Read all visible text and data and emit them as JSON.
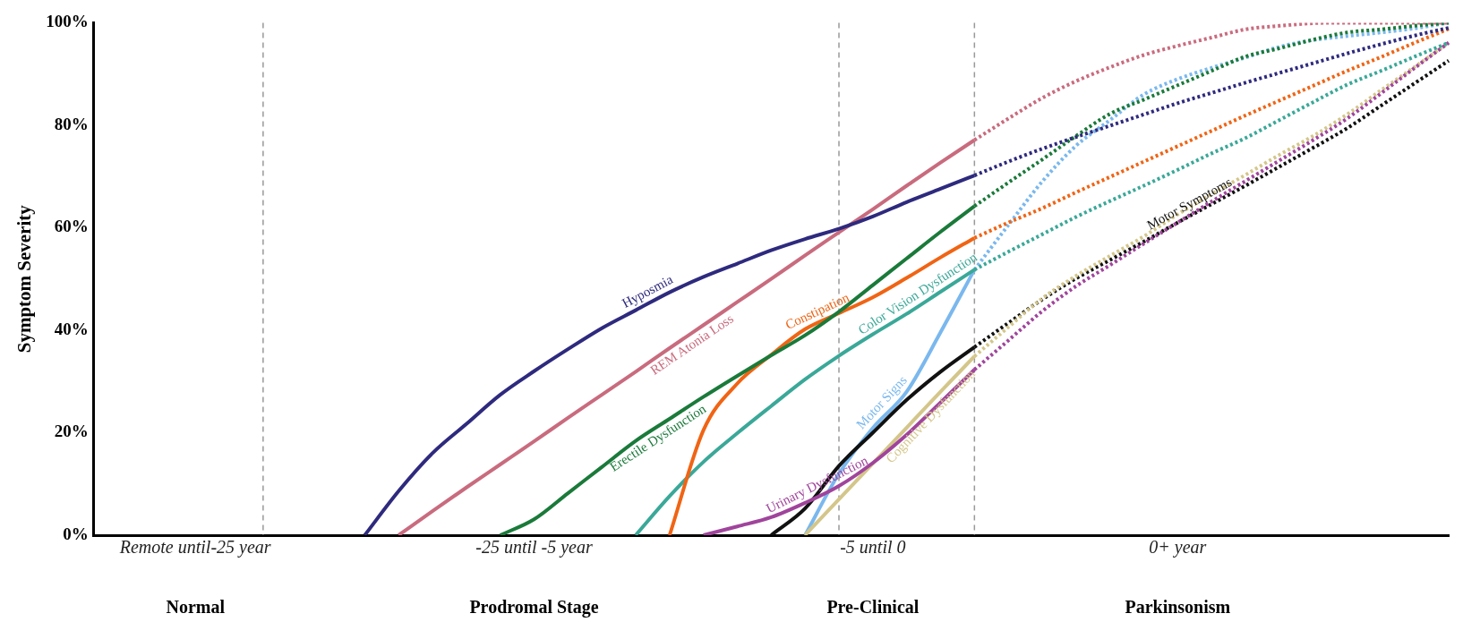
{
  "chart_data": {
    "type": "line",
    "ylabel": "Symptom Severity",
    "ylim": [
      0,
      100
    ],
    "categories": [
      null,
      null,
      null,
      "Remote until-25 year",
      null,
      null,
      null,
      null,
      null,
      null,
      null,
      null,
      null,
      "-25 until -5 year",
      null,
      null,
      null,
      null,
      null,
      null,
      null,
      null,
      null,
      "-5 until 0",
      null,
      null,
      null,
      null,
      null,
      null,
      null,
      null,
      "0+ year",
      null,
      null,
      null,
      null,
      null,
      null,
      null,
      null
    ],
    "yticks": [
      {
        "value": 0,
        "label": "0%"
      },
      {
        "value": 20,
        "label": "20%"
      },
      {
        "value": 40,
        "label": "40%"
      },
      {
        "value": 60,
        "label": "60%"
      },
      {
        "value": 80,
        "label": "80%"
      },
      {
        "value": 100,
        "label": "100%"
      }
    ],
    "annotations": [
      "Normal",
      "Prodromal Stage",
      "Pre-Clinical",
      "Parkinsonism"
    ],
    "grid": "x",
    "legend": false,
    "marker": "none",
    "series": [
      {
        "name": "Hyposmia",
        "color": "#2e2a7e",
        "values": [
          null,
          null,
          null,
          null,
          null,
          null,
          null,
          null,
          0,
          8.6,
          16,
          21.7,
          27.4,
          32,
          36.3,
          40.4,
          43.9,
          47.4,
          50.4,
          53,
          55.6,
          57.8,
          59.8,
          62.2,
          65,
          67.6,
          70.2,
          null,
          null,
          null,
          null,
          null,
          null,
          null,
          null,
          null,
          null,
          null,
          null,
          null,
          null
        ]
      },
      {
        "color": "#2e2a7e",
        "line_style": "dotted",
        "values": [
          null,
          null,
          null,
          null,
          null,
          null,
          null,
          null,
          null,
          null,
          null,
          null,
          null,
          null,
          null,
          null,
          null,
          null,
          null,
          null,
          null,
          null,
          null,
          null,
          null,
          null,
          70.2,
          72.9,
          75.4,
          77.7,
          79.9,
          82.1,
          84.3,
          86.3,
          88.3,
          90.2,
          92.1,
          94,
          95.8,
          97.5,
          99
        ]
      },
      {
        "name": "REM Atonia Loss",
        "color": "#c96b7e",
        "values": [
          null,
          null,
          null,
          null,
          null,
          null,
          null,
          null,
          null,
          0,
          4.7,
          9.3,
          13.8,
          18.3,
          22.9,
          27.4,
          31.9,
          36.5,
          41,
          45.5,
          50,
          54.6,
          59.1,
          63.6,
          68.2,
          72.7,
          77.1,
          null,
          null,
          null,
          null,
          null,
          null,
          null,
          null,
          null,
          null,
          null,
          null,
          null,
          null
        ]
      },
      {
        "color": "#c96b7e",
        "line_style": "dotted",
        "values": [
          null,
          null,
          null,
          null,
          null,
          null,
          null,
          null,
          null,
          null,
          null,
          null,
          null,
          null,
          null,
          null,
          null,
          null,
          null,
          null,
          null,
          null,
          null,
          null,
          null,
          null,
          77.1,
          81.3,
          85.3,
          88.6,
          91.3,
          93.7,
          95.5,
          97.1,
          98.7,
          99.4,
          99.9,
          100,
          100,
          100,
          100
        ]
      },
      {
        "name": "Erectile Dysfunction",
        "color": "#1a7a3a",
        "values": [
          null,
          null,
          null,
          null,
          null,
          null,
          null,
          null,
          null,
          null,
          null,
          null,
          0,
          3.1,
          8.2,
          13.3,
          18.4,
          22.7,
          27,
          31.1,
          35.1,
          39,
          43.6,
          48.8,
          54,
          59.2,
          64.2,
          null,
          null,
          null,
          null,
          null,
          null,
          null,
          null,
          null,
          null,
          null,
          null,
          null,
          null
        ]
      },
      {
        "color": "#1a7a3a",
        "line_style": "dotted",
        "values": [
          null,
          null,
          null,
          null,
          null,
          null,
          null,
          null,
          null,
          null,
          null,
          null,
          null,
          null,
          null,
          null,
          null,
          null,
          null,
          null,
          null,
          null,
          null,
          null,
          null,
          null,
          64.2,
          68.8,
          73.3,
          77.9,
          82.2,
          85,
          87.8,
          90.6,
          93.4,
          95,
          96.7,
          98.1,
          98.7,
          99.4,
          100
        ]
      },
      {
        "name": "Constipation",
        "color": "#f06414",
        "values": [
          null,
          null,
          null,
          null,
          null,
          null,
          null,
          null,
          null,
          null,
          null,
          null,
          null,
          null,
          null,
          null,
          null,
          0,
          20.5,
          29.6,
          35.2,
          40.2,
          43.3,
          46.4,
          50.2,
          54.2,
          58,
          null,
          null,
          null,
          null,
          null,
          null,
          null,
          null,
          null,
          null,
          null,
          null,
          null,
          null
        ]
      },
      {
        "color": "#f06414",
        "line_style": "dotted",
        "values": [
          null,
          null,
          null,
          null,
          null,
          null,
          null,
          null,
          null,
          null,
          null,
          null,
          null,
          null,
          null,
          null,
          null,
          null,
          null,
          null,
          null,
          null,
          null,
          null,
          null,
          null,
          58,
          61,
          63.8,
          66.9,
          69.9,
          72.9,
          75.9,
          78.9,
          81.9,
          84.8,
          87.7,
          90.6,
          93.3,
          96.1,
          98.8
        ]
      },
      {
        "name": "Color Vision Dysfunction",
        "color": "#3aa898",
        "values": [
          null,
          null,
          null,
          null,
          null,
          null,
          null,
          null,
          null,
          null,
          null,
          null,
          null,
          null,
          null,
          null,
          0,
          7.6,
          14.3,
          19.9,
          25.2,
          30.4,
          35,
          39.2,
          43.2,
          47.5,
          51.8,
          null,
          null,
          null,
          null,
          null,
          null,
          null,
          null,
          null,
          null,
          null,
          null,
          null,
          null
        ]
      },
      {
        "color": "#3aa898",
        "line_style": "dotted",
        "values": [
          null,
          null,
          null,
          null,
          null,
          null,
          null,
          null,
          null,
          null,
          null,
          null,
          null,
          null,
          null,
          null,
          null,
          null,
          null,
          null,
          null,
          null,
          null,
          null,
          null,
          null,
          51.8,
          55.3,
          58.7,
          62.1,
          65.2,
          68.2,
          71.3,
          74.5,
          77.5,
          81,
          84.5,
          87.9,
          90.6,
          93.4,
          96.1
        ]
      },
      {
        "name": "Urinary Dysfunction",
        "color": "#a0449c",
        "values": [
          null,
          null,
          null,
          null,
          null,
          null,
          null,
          null,
          null,
          null,
          null,
          null,
          null,
          null,
          null,
          null,
          null,
          null,
          0,
          1.7,
          3.5,
          6.3,
          9.6,
          14.1,
          19.6,
          25.9,
          32.3,
          null,
          null,
          null,
          null,
          null,
          null,
          null,
          null,
          null,
          null,
          null,
          null,
          null,
          null
        ]
      },
      {
        "color": "#a0449c",
        "line_style": "dotted",
        "values": [
          null,
          null,
          null,
          null,
          null,
          null,
          null,
          null,
          null,
          null,
          null,
          null,
          null,
          null,
          null,
          null,
          null,
          null,
          null,
          null,
          null,
          null,
          null,
          null,
          null,
          null,
          32.3,
          38,
          43.7,
          48.6,
          52.7,
          56.9,
          61,
          65.1,
          69.1,
          73.1,
          77.1,
          81.3,
          86.2,
          91.2,
          96.1
        ]
      },
      {
        "name": "Cognitive Dysfunction",
        "color": "#d4c68a",
        "values": [
          null,
          null,
          null,
          null,
          null,
          null,
          null,
          null,
          null,
          null,
          null,
          null,
          null,
          null,
          null,
          null,
          null,
          null,
          null,
          null,
          null,
          0,
          7,
          14,
          21,
          28,
          34.9,
          null,
          null,
          null,
          null,
          null,
          null,
          null,
          null,
          null,
          null,
          null,
          null,
          null,
          null
        ]
      },
      {
        "color": "#d4c68a",
        "line_style": "dotted",
        "values": [
          null,
          null,
          null,
          null,
          null,
          null,
          null,
          null,
          null,
          null,
          null,
          null,
          null,
          null,
          null,
          null,
          null,
          null,
          null,
          null,
          null,
          null,
          null,
          null,
          null,
          null,
          34.9,
          40.6,
          46.2,
          50.6,
          54.5,
          58.3,
          62.6,
          66.5,
          70.3,
          74.2,
          77.9,
          82.1,
          86.8,
          91.4,
          96.1
        ]
      },
      {
        "color": "#111111",
        "values": [
          null,
          null,
          null,
          null,
          null,
          null,
          null,
          null,
          null,
          null,
          null,
          null,
          null,
          null,
          null,
          null,
          null,
          null,
          null,
          null,
          0,
          5.2,
          13.5,
          20,
          26.4,
          31.9,
          36.7,
          null,
          null,
          null,
          null,
          null,
          null,
          null,
          null,
          null,
          null,
          null,
          null,
          null,
          null
        ]
      },
      {
        "name": "Motor Symptoms",
        "color": "#111111",
        "line_style": "dotted",
        "values": [
          null,
          null,
          null,
          null,
          null,
          null,
          null,
          null,
          null,
          null,
          null,
          null,
          null,
          null,
          null,
          null,
          null,
          null,
          null,
          null,
          null,
          null,
          null,
          null,
          null,
          null,
          36.7,
          41.4,
          46,
          50.1,
          53.7,
          57.3,
          61,
          64.6,
          68.2,
          71.9,
          75.6,
          79.4,
          83.8,
          88.2,
          92.6
        ]
      },
      {
        "name": "Motor Signs",
        "color": "#7ab8ee",
        "values": [
          null,
          null,
          null,
          null,
          null,
          null,
          null,
          null,
          null,
          null,
          null,
          null,
          null,
          null,
          null,
          null,
          null,
          null,
          null,
          null,
          null,
          0,
          12,
          20.9,
          28,
          39.6,
          51.8,
          null,
          null,
          null,
          null,
          null,
          null,
          null,
          null,
          null,
          null,
          null,
          null,
          null,
          null
        ]
      },
      {
        "color": "#7ab8ee",
        "line_style": "dotted",
        "values": [
          null,
          null,
          null,
          null,
          null,
          null,
          null,
          null,
          null,
          null,
          null,
          null,
          null,
          null,
          null,
          null,
          null,
          null,
          null,
          null,
          null,
          null,
          null,
          null,
          null,
          null,
          51.8,
          60.5,
          69,
          76,
          81,
          86,
          89,
          91.2,
          93.2,
          95.3,
          96.6,
          97.4,
          98.1,
          98.9,
          100
        ]
      }
    ]
  }
}
